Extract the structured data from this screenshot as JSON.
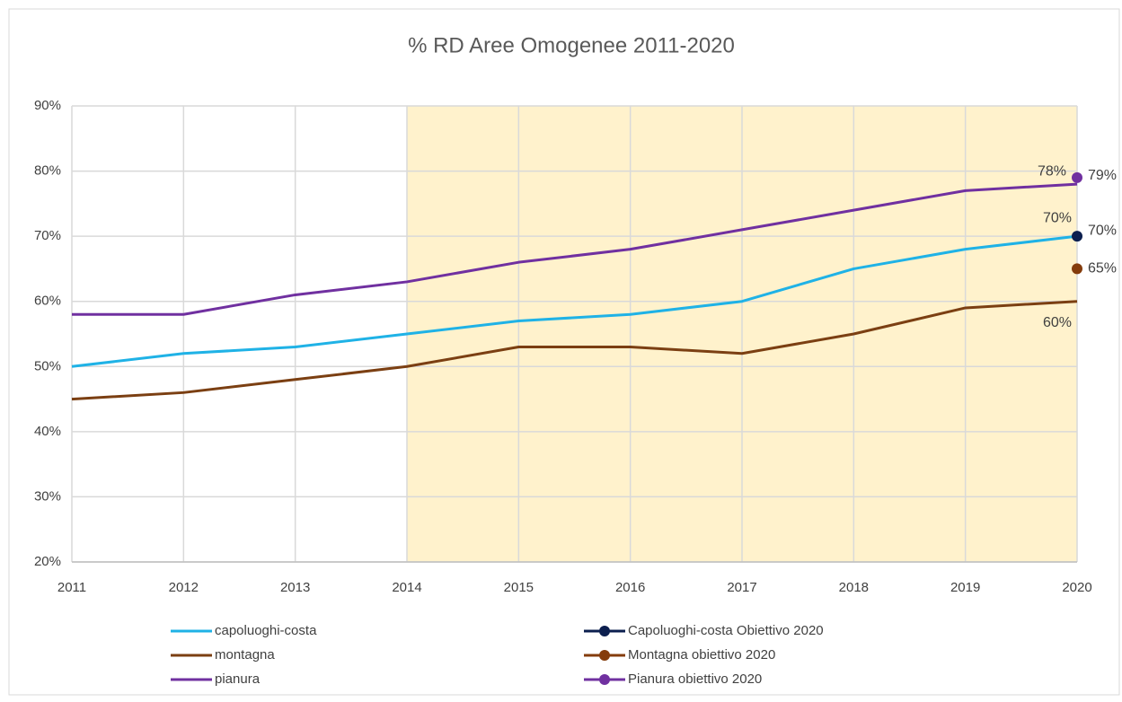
{
  "chart_data": {
    "type": "line",
    "title": "% RD Aree Omogenee 2011-2020",
    "categories": [
      "2011",
      "2012",
      "2013",
      "2014",
      "2015",
      "2016",
      "2017",
      "2018",
      "2019",
      "2020"
    ],
    "ylim": [
      20,
      90
    ],
    "yticks": [
      {
        "value": 20,
        "label": "20%"
      },
      {
        "value": 30,
        "label": "30%"
      },
      {
        "value": 40,
        "label": "40%"
      },
      {
        "value": 50,
        "label": "50%"
      },
      {
        "value": 60,
        "label": "60%"
      },
      {
        "value": 70,
        "label": "70%"
      },
      {
        "value": 80,
        "label": "80%"
      },
      {
        "value": 90,
        "label": "90%"
      }
    ],
    "grid": true,
    "legend": "bottom",
    "shaded_from": "2014",
    "shaded_color": "#fff2cc",
    "series": [
      {
        "name": "capoluoghi-costa",
        "color": "#1fb2e6",
        "marker": false,
        "values": [
          50,
          52,
          53,
          55,
          57,
          58,
          60,
          65,
          68,
          70
        ],
        "value_labels": [
          null,
          null,
          null,
          null,
          null,
          null,
          null,
          null,
          null,
          "70%"
        ]
      },
      {
        "name": "montagna",
        "color": "#7b3f12",
        "marker": false,
        "values": [
          45,
          46,
          48,
          50,
          53,
          53,
          52,
          55,
          59,
          60
        ],
        "value_labels": [
          null,
          null,
          null,
          null,
          null,
          null,
          null,
          null,
          null,
          "60%"
        ]
      },
      {
        "name": "pianura",
        "color": "#7030a0",
        "marker": false,
        "values": [
          58,
          58,
          61,
          63,
          66,
          68,
          71,
          74,
          77,
          78
        ],
        "value_labels": [
          null,
          null,
          null,
          null,
          null,
          null,
          null,
          null,
          null,
          "78%"
        ]
      },
      {
        "name": "Capoluoghi-costa Obiettivo 2020",
        "color": "#0c1f4f",
        "marker": true,
        "values": [
          null,
          null,
          null,
          null,
          null,
          null,
          null,
          null,
          null,
          70
        ],
        "value_labels": [
          null,
          null,
          null,
          null,
          null,
          null,
          null,
          null,
          null,
          "70%"
        ]
      },
      {
        "name": "Montagna obiettivo 2020",
        "color": "#843c0c",
        "marker": true,
        "values": [
          null,
          null,
          null,
          null,
          null,
          null,
          null,
          null,
          null,
          65
        ],
        "value_labels": [
          null,
          null,
          null,
          null,
          null,
          null,
          null,
          null,
          null,
          "65%"
        ]
      },
      {
        "name": "Pianura obiettivo 2020",
        "color": "#7030a0",
        "marker": true,
        "values": [
          null,
          null,
          null,
          null,
          null,
          null,
          null,
          null,
          null,
          79
        ],
        "value_labels": [
          null,
          null,
          null,
          null,
          null,
          null,
          null,
          null,
          null,
          "79%"
        ]
      }
    ]
  }
}
